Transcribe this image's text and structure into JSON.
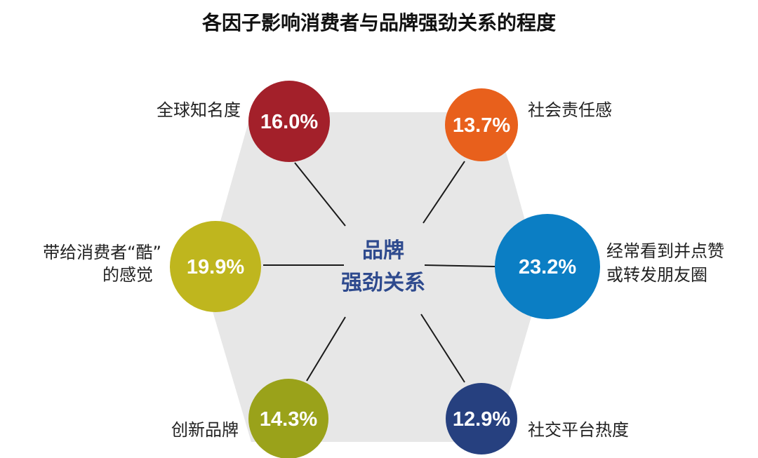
{
  "title": "各因子影响消费者与品牌强劲关系的程度",
  "center": {
    "line1": "品牌",
    "line2": "强劲关系",
    "color": "#2e4a8e"
  },
  "factors": [
    {
      "percent": "16.0%",
      "label_lines": [
        "全球知名度"
      ],
      "color": "#a3202a"
    },
    {
      "percent": "13.7%",
      "label_lines": [
        "社会责任感"
      ],
      "color": "#e8601c"
    },
    {
      "percent": "19.9%",
      "label_lines": [
        "带给消费者“酷”",
        "的感觉"
      ],
      "color": "#bfb61e"
    },
    {
      "percent": "23.2%",
      "label_lines": [
        "经常看到并点赞",
        "或转发朋友圈"
      ],
      "color": "#0b7ec4"
    },
    {
      "percent": "14.3%",
      "label_lines": [
        "创新品牌"
      ],
      "color": "#9aa21a"
    },
    {
      "percent": "12.9%",
      "label_lines": [
        "社交平台热度"
      ],
      "color": "#26407f"
    }
  ],
  "hexagon_color": "#e7e7e7"
}
